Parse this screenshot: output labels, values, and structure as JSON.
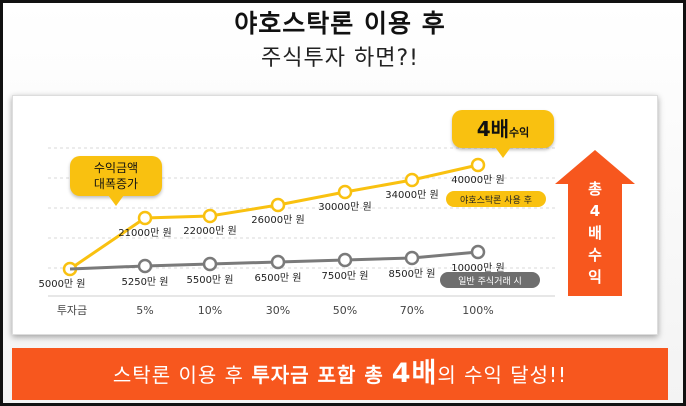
{
  "header": {
    "title": "야호스탁론 이용 후",
    "subtitle": "주식투자 하면?!"
  },
  "callouts": {
    "growth": [
      "수익금액",
      "대폭증가"
    ],
    "four_x_big": "4배",
    "four_x_small": "수익"
  },
  "side_arrow": {
    "chars": [
      "총",
      "4",
      "배",
      "수",
      "익"
    ],
    "color": "#f7571e"
  },
  "banner": {
    "part1": "스탁론 이용 후 ",
    "part2": "투자금 포함 총 ",
    "part3": "4배",
    "part4": "의 수익 달성!!",
    "color": "#f7571e"
  },
  "chart_data": {
    "type": "line",
    "categories": [
      "투자금",
      "5%",
      "10%",
      "30%",
      "50%",
      "70%",
      "100%"
    ],
    "ylim": [
      0,
      45000
    ],
    "series": [
      {
        "name": "야호스탁론 사용 후",
        "color": "#f9c110",
        "values": [
          5000,
          21000,
          22000,
          26000,
          30000,
          34000,
          40000
        ],
        "labels": [
          "5000만 원",
          "21000만 원",
          "22000만 원",
          "26000만 원",
          "30000만 원",
          "34000만 원",
          "40000만 원"
        ]
      },
      {
        "name": "일반 주식거래 시",
        "color": "#7a7a7a",
        "values": [
          5000,
          5250,
          5500,
          6500,
          7500,
          8500,
          10000
        ],
        "labels": [
          "5000만 원",
          "5250만 원",
          "5500만 원",
          "6500만 원",
          "7500만 원",
          "8500만 원",
          "10000만 원"
        ]
      }
    ]
  }
}
